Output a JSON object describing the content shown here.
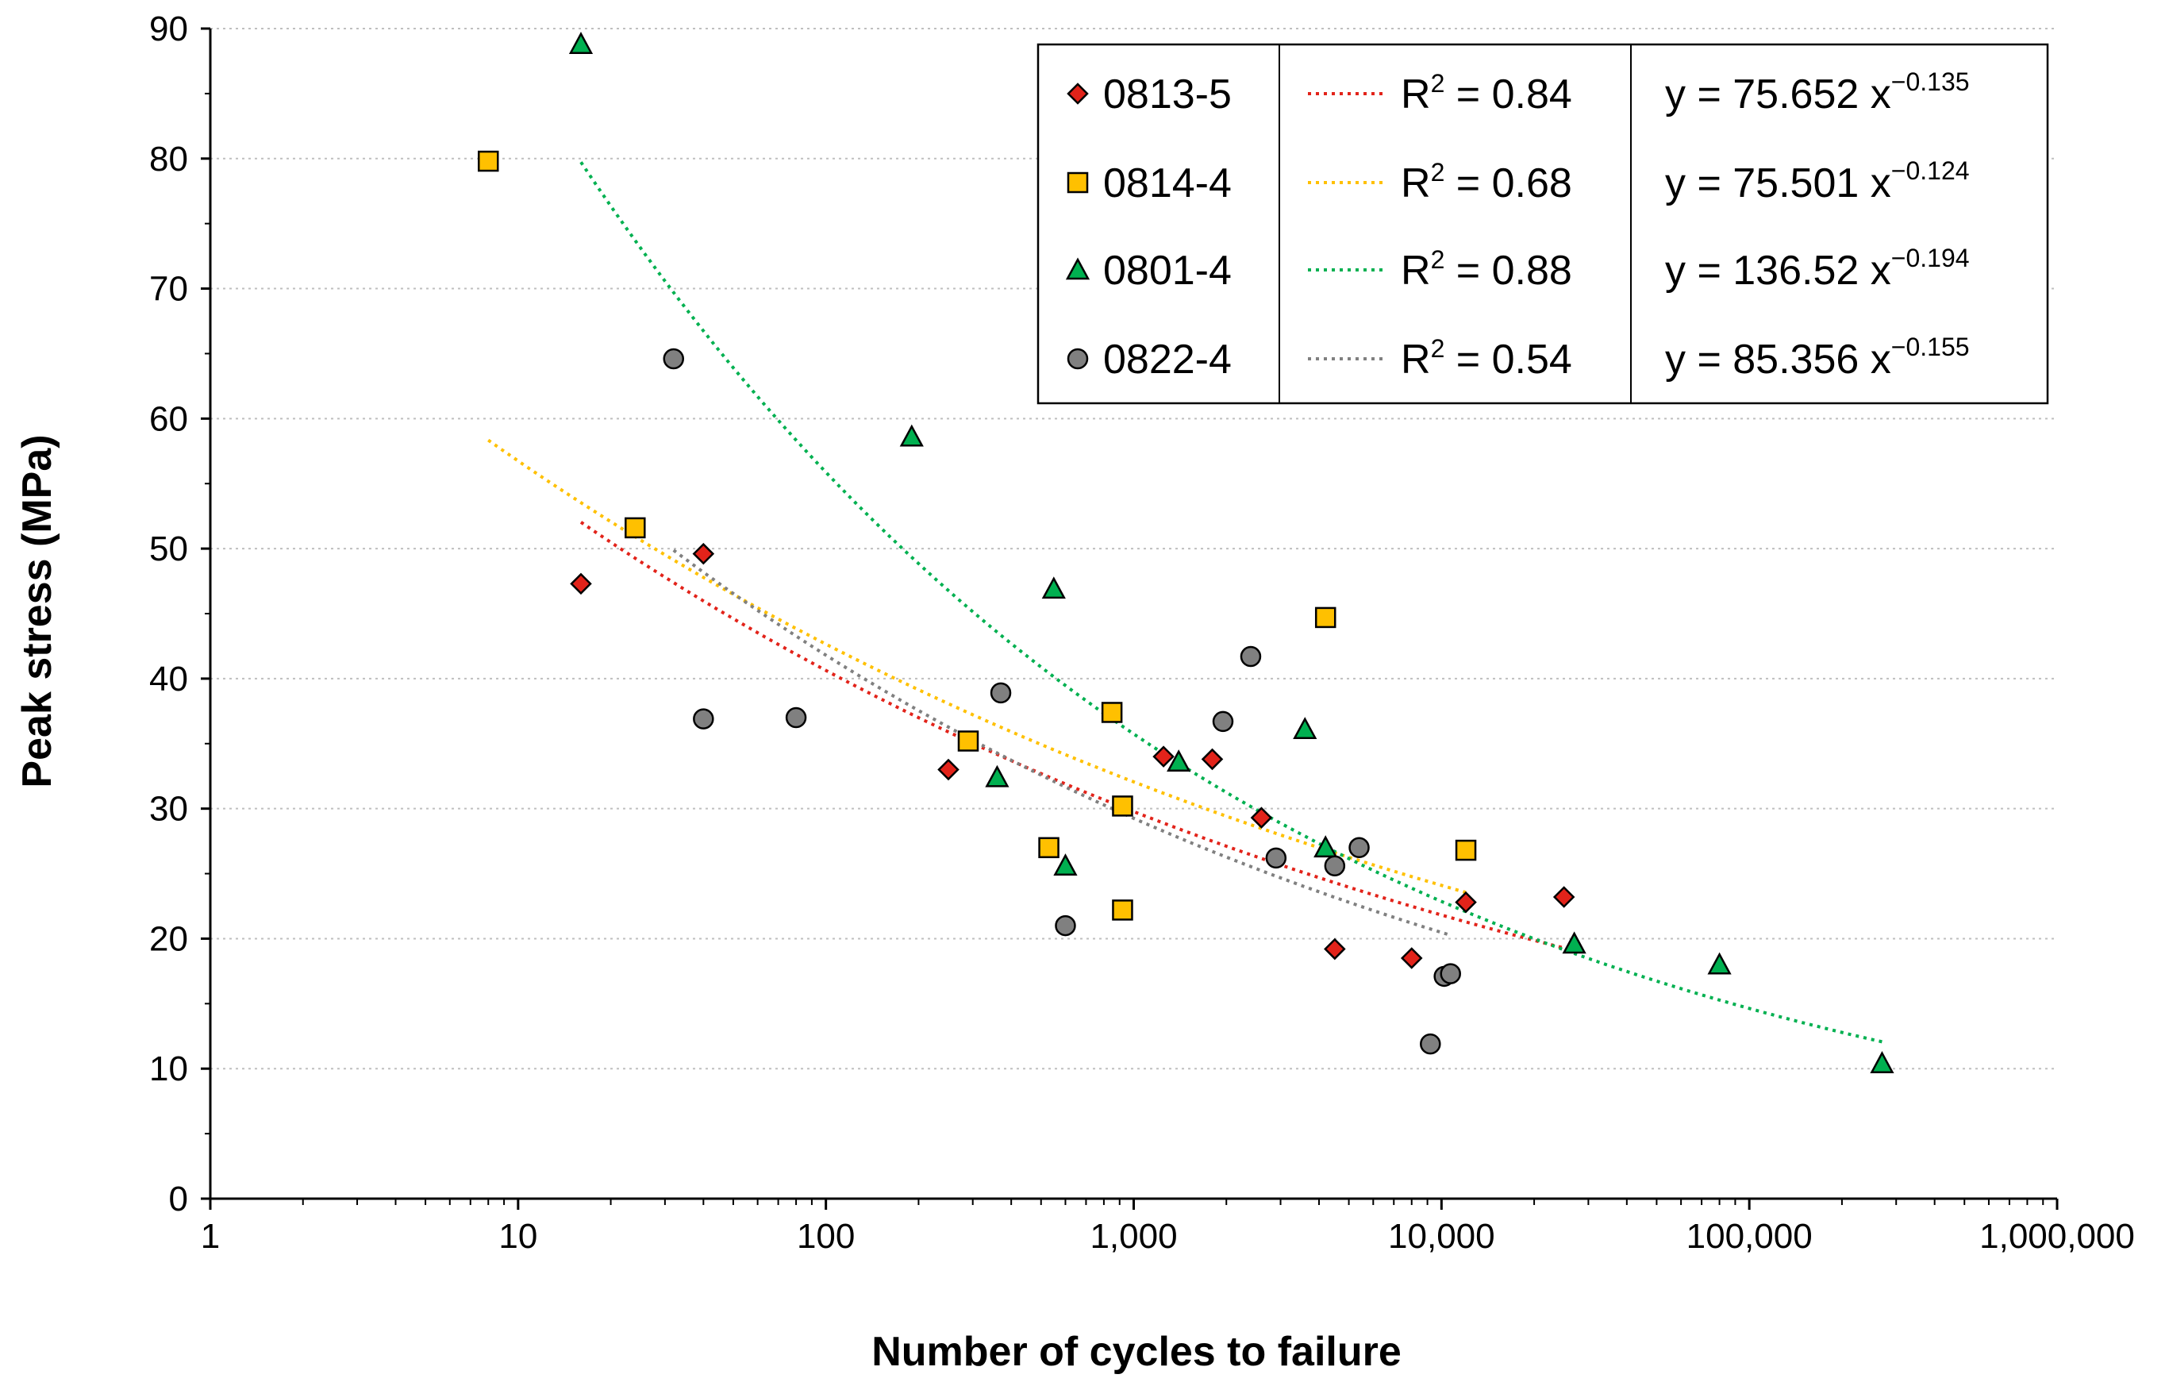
{
  "chart_data": {
    "type": "scatter",
    "xscale": "log",
    "xlabel": "Number of cycles to failure",
    "ylabel": "Peak stress (MPa)",
    "xlim": [
      1,
      1000000
    ],
    "ylim": [
      0,
      90
    ],
    "x_ticks": [
      1,
      10,
      100,
      1000,
      10000,
      100000,
      1000000
    ],
    "x_tick_labels": [
      "1",
      "10",
      "100",
      "1,000",
      "10,000",
      "100,000",
      "1,000,000"
    ],
    "y_ticks": [
      0,
      10,
      20,
      30,
      40,
      50,
      60,
      70,
      80,
      90
    ],
    "y_tick_labels": [
      "0",
      "10",
      "20",
      "30",
      "40",
      "50",
      "60",
      "70",
      "80",
      "90"
    ],
    "grid": "horizontal dotted",
    "legend_position": "top-right",
    "series": [
      {
        "name": "0813-5",
        "marker": "diamond",
        "color": "#e2231a",
        "r2_label": "R",
        "r2_value": " = 0.84",
        "equation": "y = 75.652 x",
        "exponent": "−0.135",
        "fit": {
          "a": 75.652,
          "b": -0.135,
          "x_range": [
            16,
            25000
          ]
        },
        "points": [
          [
            16,
            47.3
          ],
          [
            40,
            49.6
          ],
          [
            250,
            33.0
          ],
          [
            1250,
            34.0
          ],
          [
            1800,
            33.8
          ],
          [
            2600,
            29.3
          ],
          [
            4500,
            19.2
          ],
          [
            8000,
            18.5
          ],
          [
            12000,
            22.8
          ],
          [
            25000,
            23.2
          ]
        ]
      },
      {
        "name": "0814-4",
        "marker": "square",
        "color": "#ffc000",
        "r2_label": "R",
        "r2_value": " = 0.68",
        "equation": "y = 75.501 x",
        "exponent": "−0.124",
        "fit": {
          "a": 75.501,
          "b": -0.124,
          "x_range": [
            8,
            12000
          ]
        },
        "points": [
          [
            8,
            79.8
          ],
          [
            24,
            51.6
          ],
          [
            290,
            35.2
          ],
          [
            530,
            27.0
          ],
          [
            850,
            37.4
          ],
          [
            920,
            30.2
          ],
          [
            920,
            22.2
          ],
          [
            4200,
            44.7
          ],
          [
            12000,
            26.8
          ]
        ]
      },
      {
        "name": "0801-4",
        "marker": "triangle",
        "color": "#00b050",
        "r2_label": "R",
        "r2_value": " = 0.88",
        "equation": "y = 136.52 x",
        "exponent": "−0.194",
        "fit": {
          "a": 136.52,
          "b": -0.194,
          "x_range": [
            16,
            270000
          ]
        },
        "points": [
          [
            16,
            88.8
          ],
          [
            190,
            58.6
          ],
          [
            360,
            32.4
          ],
          [
            550,
            46.9
          ],
          [
            600,
            25.6
          ],
          [
            1400,
            33.6
          ],
          [
            3600,
            36.1
          ],
          [
            4200,
            27.0
          ],
          [
            27000,
            19.6
          ],
          [
            80000,
            18.0
          ],
          [
            270000,
            10.4
          ]
        ]
      },
      {
        "name": "0822-4",
        "marker": "circle",
        "color": "#808080",
        "r2_label": "R",
        "r2_value": " = 0.54",
        "equation": "y = 85.356 x",
        "exponent": "−0.155",
        "fit": {
          "a": 85.356,
          "b": -0.155,
          "x_range": [
            32,
            10500
          ]
        },
        "points": [
          [
            32,
            64.6
          ],
          [
            40,
            36.9
          ],
          [
            80,
            37.0
          ],
          [
            370,
            38.9
          ],
          [
            600,
            21.0
          ],
          [
            1950,
            36.7
          ],
          [
            2400,
            41.7
          ],
          [
            2900,
            26.2
          ],
          [
            4500,
            25.6
          ],
          [
            5400,
            27.0
          ],
          [
            9200,
            11.9
          ],
          [
            10200,
            17.1
          ],
          [
            10700,
            17.3
          ]
        ]
      }
    ]
  }
}
